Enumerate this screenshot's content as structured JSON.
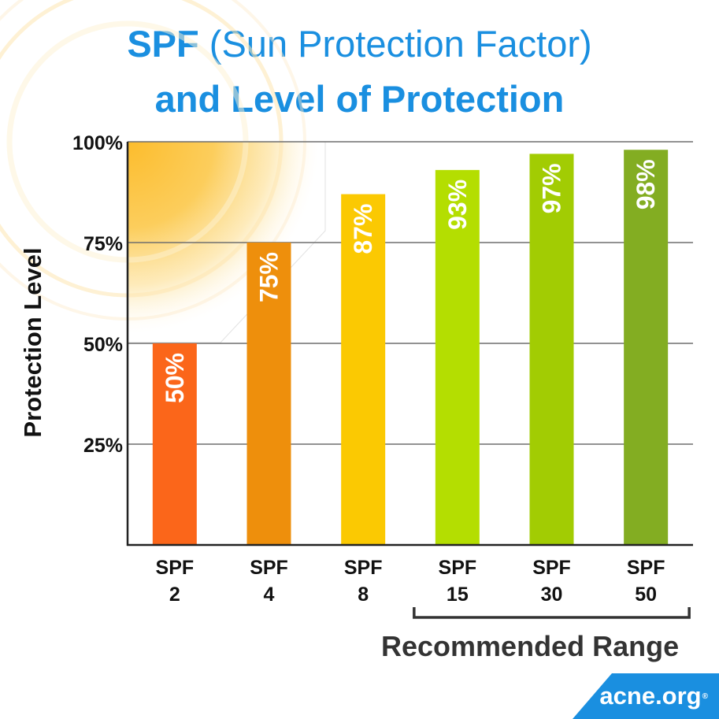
{
  "title": {
    "line1_bold": "SPF",
    "line1_rest": " (Sun Protection Factor)",
    "line2": "and Level of Protection"
  },
  "chart_data": {
    "type": "bar",
    "ylabel": "Protection Level",
    "ylim": [
      0,
      100
    ],
    "yticks": [
      25,
      50,
      75,
      100
    ],
    "ytick_labels": [
      "25%",
      "50%",
      "75%",
      "100%"
    ],
    "grid": true,
    "categories": [
      {
        "top": "SPF",
        "bottom": "2"
      },
      {
        "top": "SPF",
        "bottom": "4"
      },
      {
        "top": "SPF",
        "bottom": "8"
      },
      {
        "top": "SPF",
        "bottom": "15"
      },
      {
        "top": "SPF",
        "bottom": "30"
      },
      {
        "top": "SPF",
        "bottom": "50"
      }
    ],
    "values": [
      50,
      75,
      87,
      93,
      97,
      98
    ],
    "value_labels": [
      "50%",
      "75%",
      "87%",
      "93%",
      "97%",
      "98%"
    ],
    "colors": [
      "#fb661a",
      "#ee8f0c",
      "#fbc902",
      "#b4de01",
      "#a2cc03",
      "#83ad22"
    ],
    "recommended_range": {
      "label": "Recommended Range",
      "from_index": 3,
      "to_index": 5
    }
  },
  "logo": {
    "text": "acne.org",
    "mark": "®"
  }
}
